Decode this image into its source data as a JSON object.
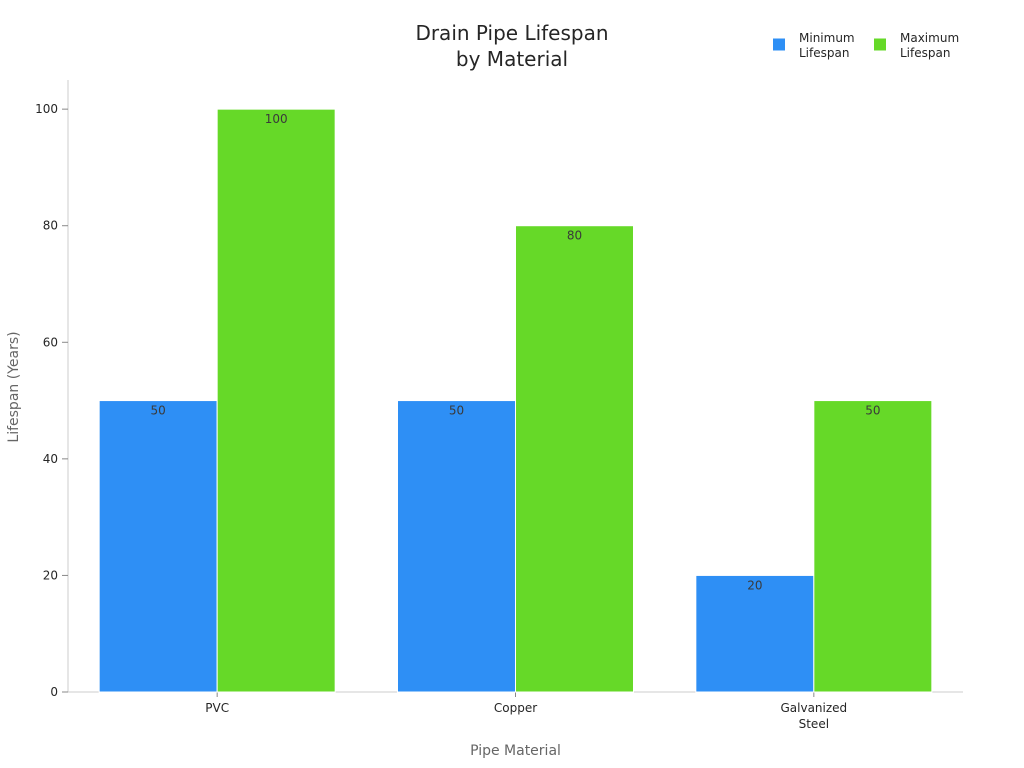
{
  "chart_data": {
    "type": "bar",
    "title_lines": [
      "Drain Pipe Lifespan",
      "by Material"
    ],
    "xlabel": "Pipe Material",
    "ylabel": "Lifespan (Years)",
    "categories": [
      [
        "PVC"
      ],
      [
        "Copper"
      ],
      [
        "Galvanized",
        "Steel"
      ]
    ],
    "series": [
      {
        "name_lines": [
          "Minimum",
          "Lifespan"
        ],
        "color": "#2E8FF5",
        "values": [
          50,
          50,
          20
        ]
      },
      {
        "name_lines": [
          "Maximum",
          "Lifespan"
        ],
        "color": "#66D928",
        "values": [
          100,
          80,
          50
        ]
      }
    ],
    "ylim": [
      0,
      105
    ],
    "yticks": [
      0,
      20,
      40,
      60,
      80,
      100
    ],
    "grid": false,
    "legend_position": "top-right"
  }
}
